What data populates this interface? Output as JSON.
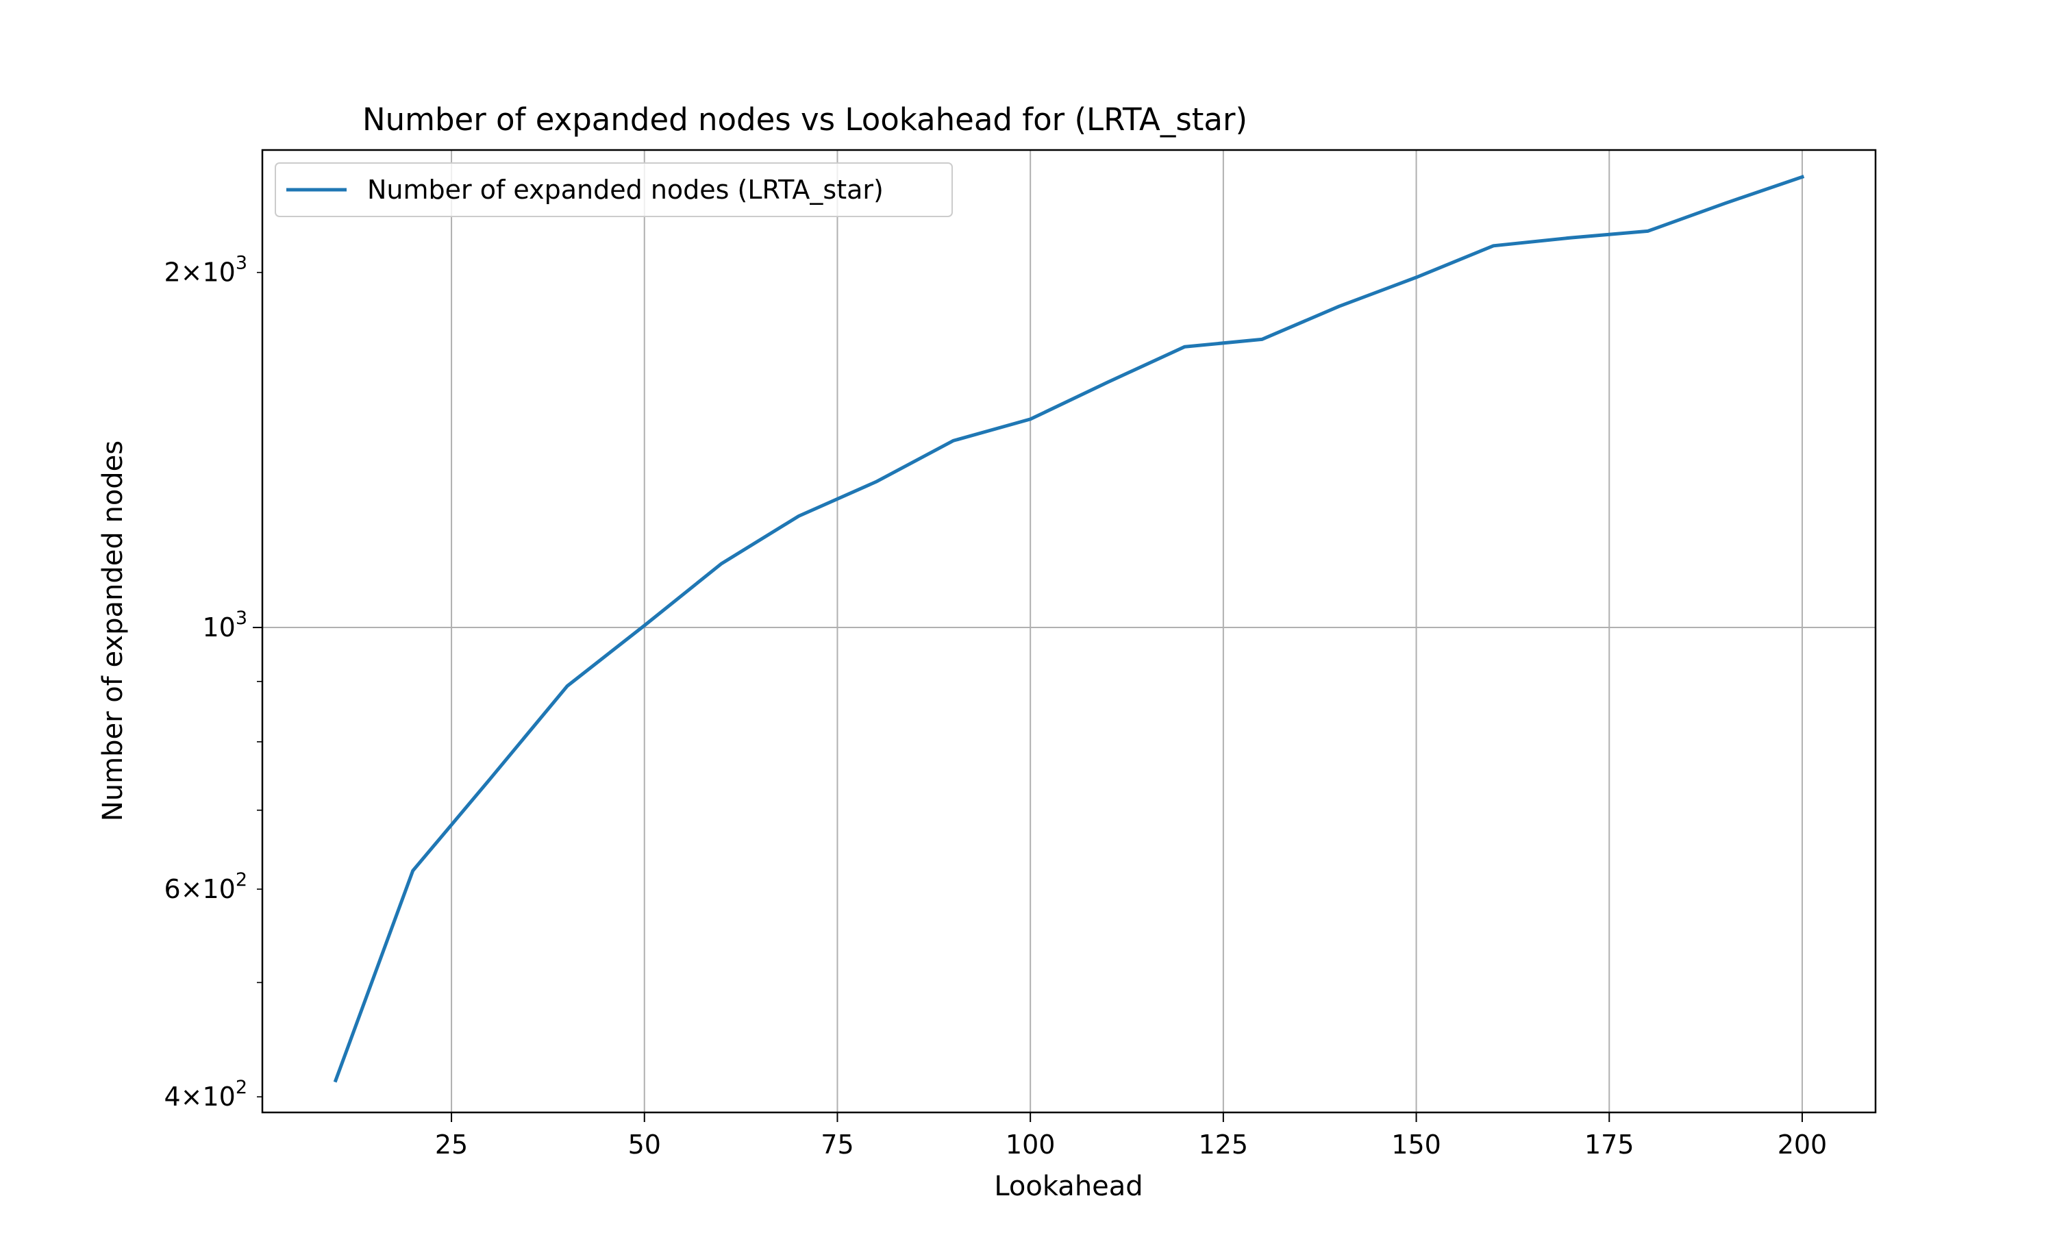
{
  "colors": {
    "series": "#1f77b4",
    "grid": "#b0b0b0",
    "axes": "#000000",
    "legend_border": "#cccccc"
  },
  "chart_data": {
    "type": "line",
    "title": "Number of expanded nodes vs Lookahead for  (LRTA_star)",
    "xlabel": "Lookahead",
    "ylabel": "Number of expanded nodes",
    "yscale": "log",
    "xlim": [
      0.5,
      209.5
    ],
    "ylim": [
      388,
      2540
    ],
    "grid": true,
    "legend_position": "top-left",
    "x_ticks": [
      {
        "value": 25,
        "label": "25"
      },
      {
        "value": 50,
        "label": "50"
      },
      {
        "value": 75,
        "label": "75"
      },
      {
        "value": 100,
        "label": "100"
      },
      {
        "value": 125,
        "label": "125"
      },
      {
        "value": 150,
        "label": "150"
      },
      {
        "value": 175,
        "label": "175"
      },
      {
        "value": 200,
        "label": "200"
      }
    ],
    "y_major_ticks": [
      {
        "value": 1000,
        "base": "10",
        "exp": "3"
      }
    ],
    "y_minor_ticks": [
      {
        "value": 400,
        "coef": "4",
        "base": "10",
        "exp": "2"
      },
      {
        "value": 500
      },
      {
        "value": 600,
        "coef": "6",
        "base": "10",
        "exp": "2"
      },
      {
        "value": 700
      },
      {
        "value": 800
      },
      {
        "value": 900
      },
      {
        "value": 2000,
        "coef": "2",
        "base": "10",
        "exp": "3"
      }
    ],
    "x": [
      10,
      20,
      30,
      40,
      50,
      60,
      70,
      80,
      90,
      100,
      110,
      120,
      130,
      140,
      150,
      160,
      170,
      180,
      190,
      200
    ],
    "series": [
      {
        "name": "Number of expanded nodes (LRTA_star)",
        "values": [
          413,
          622,
          744,
          892,
          1004,
          1133,
          1243,
          1329,
          1440,
          1502,
          1614,
          1730,
          1755,
          1872,
          1981,
          2107,
          2140,
          2168,
          2289,
          2410
        ]
      }
    ]
  }
}
